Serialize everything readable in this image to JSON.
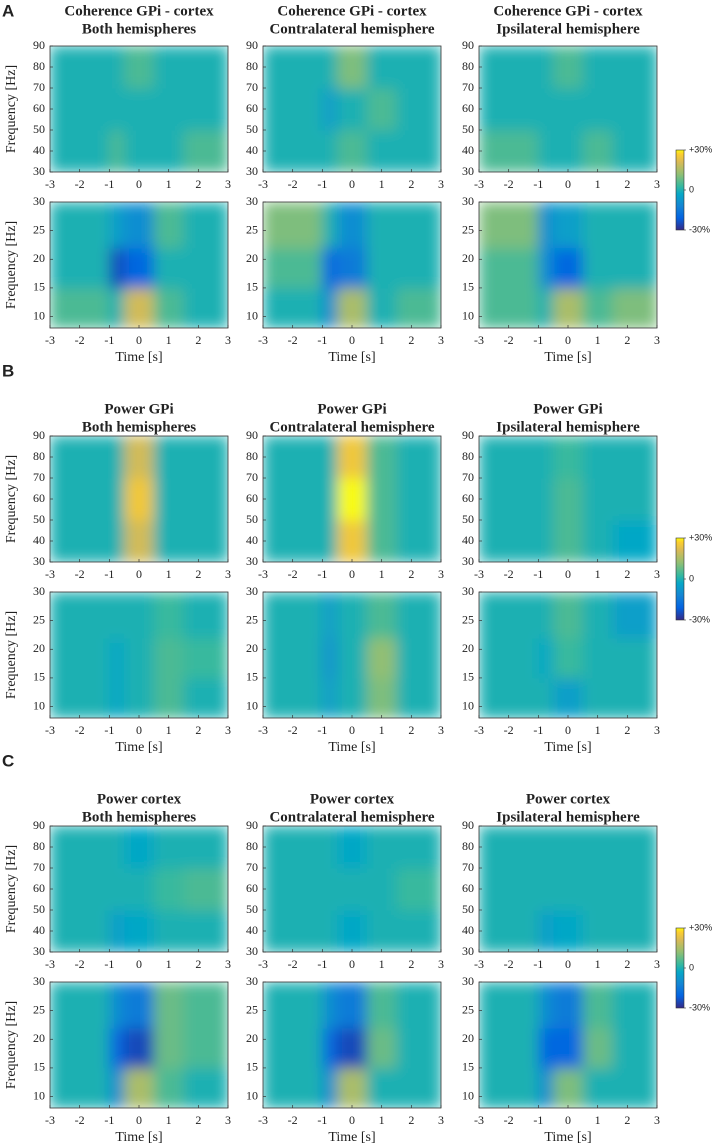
{
  "sections": [
    {
      "letter": "A",
      "titles": [
        [
          "Coherence GPi - cortex",
          "Both hemispheres"
        ],
        [
          "Coherence GPi - cortex",
          "Contralateral hemisphere"
        ],
        [
          "Coherence GPi - cortex",
          "Ipsilateral hemisphere"
        ]
      ],
      "colorbar": {
        "lim": [
          -30,
          30
        ],
        "ticks": [
          {
            "value": 30,
            "label": "+30%"
          },
          0,
          {
            "value": -30,
            "label": "-30%"
          }
        ]
      }
    },
    {
      "letter": "B",
      "titles": [
        [
          "Power GPi",
          "Both hemispheres"
        ],
        [
          "Power GPi",
          "Contralateral hemisphere"
        ],
        [
          "Power GPi",
          "Ipsilateral hemisphere"
        ]
      ],
      "colorbar": {
        "lim": [
          -30,
          30
        ],
        "ticks": [
          {
            "value": 30,
            "label": "+30%"
          },
          0,
          {
            "value": -30,
            "label": "-30%"
          }
        ]
      }
    },
    {
      "letter": "C",
      "titles": [
        [
          "Power cortex",
          "Both hemispheres"
        ],
        [
          "Power cortex",
          "Contralateral hemisphere"
        ],
        [
          "Power cortex",
          "Ipsilateral hemisphere"
        ]
      ],
      "colorbar": {
        "lim": [
          -30,
          30
        ],
        "ticks": [
          {
            "value": 30,
            "label": "+30%"
          },
          0,
          {
            "value": -30,
            "label": "-30%"
          }
        ]
      }
    }
  ],
  "chart_data": [
    {
      "type": "heatmap",
      "ylabel": "Frequency [Hz]",
      "x_bins": [
        -3,
        -1,
        -0.5,
        0.5,
        1.5,
        3
      ],
      "y_bins": [
        30,
        50,
        70,
        90
      ],
      "z": [
        [
          0,
          5,
          0,
          0,
          5
        ],
        [
          0,
          0,
          0,
          0,
          0
        ],
        [
          0,
          0,
          5,
          0,
          0
        ]
      ],
      "xlim": [
        -3,
        3
      ],
      "xticks": [
        -3,
        -2,
        -1,
        0,
        1,
        2,
        3
      ],
      "ylim": [
        30,
        90
      ],
      "yticks": [
        30,
        40,
        50,
        60,
        70,
        80,
        90
      ]
    },
    {
      "type": "heatmap",
      "x_bins": [
        -3,
        -1,
        -0.5,
        0.5,
        1.5,
        3
      ],
      "y_bins": [
        30,
        50,
        70,
        90
      ],
      "z": [
        [
          0,
          0,
          5,
          0,
          0
        ],
        [
          0,
          -5,
          0,
          5,
          0
        ],
        [
          0,
          0,
          10,
          0,
          0
        ]
      ],
      "xlim": [
        -3,
        3
      ],
      "xticks": [
        -3,
        -2,
        -1,
        0,
        1,
        2,
        3
      ],
      "ylim": [
        30,
        90
      ],
      "yticks": [
        30,
        40,
        50,
        60,
        70,
        80,
        90
      ]
    },
    {
      "type": "heatmap",
      "x_bins": [
        -3,
        -1,
        -0.5,
        0.5,
        1.5,
        3
      ],
      "y_bins": [
        30,
        50,
        70,
        90
      ],
      "z": [
        [
          5,
          0,
          0,
          5,
          0
        ],
        [
          0,
          0,
          0,
          0,
          0
        ],
        [
          0,
          0,
          5,
          0,
          0
        ]
      ],
      "xlim": [
        -3,
        3
      ],
      "xticks": [
        -3,
        -2,
        -1,
        0,
        1,
        2,
        3
      ],
      "ylim": [
        30,
        90
      ],
      "yticks": [
        30,
        40,
        50,
        60,
        70,
        80,
        90
      ]
    },
    {
      "type": "heatmap",
      "ylabel": "Frequency [Hz]",
      "xlabel": "Time [s]",
      "x_bins": [
        -3,
        -1,
        -0.5,
        0.5,
        1.5,
        3
      ],
      "y_bins": [
        8,
        15,
        22,
        30
      ],
      "z": [
        [
          5,
          0,
          20,
          5,
          0
        ],
        [
          0,
          -25,
          -20,
          0,
          0
        ],
        [
          0,
          -5,
          -10,
          5,
          0
        ]
      ],
      "xlim": [
        -3,
        3
      ],
      "xticks": [
        -3,
        -2,
        -1,
        0,
        1,
        2,
        3
      ],
      "ylim": [
        8,
        30
      ],
      "yticks": [
        10,
        15,
        20,
        25,
        30
      ]
    },
    {
      "type": "heatmap",
      "xlabel": "Time [s]",
      "x_bins": [
        -3,
        -1,
        -0.5,
        0.5,
        1.5,
        3
      ],
      "y_bins": [
        8,
        15,
        22,
        30
      ],
      "z": [
        [
          0,
          -10,
          15,
          0,
          5
        ],
        [
          5,
          -20,
          -15,
          0,
          0
        ],
        [
          10,
          0,
          -10,
          0,
          0
        ]
      ],
      "xlim": [
        -3,
        3
      ],
      "xticks": [
        -3,
        -2,
        -1,
        0,
        1,
        2,
        3
      ],
      "ylim": [
        8,
        30
      ],
      "yticks": [
        10,
        15,
        20,
        25,
        30
      ]
    },
    {
      "type": "heatmap",
      "xlabel": "Time [s]",
      "x_bins": [
        -3,
        -1,
        -0.5,
        0.5,
        1.5,
        3
      ],
      "y_bins": [
        8,
        15,
        22,
        30
      ],
      "z": [
        [
          5,
          0,
          15,
          5,
          10
        ],
        [
          5,
          -10,
          -20,
          0,
          0
        ],
        [
          10,
          -10,
          -5,
          0,
          0
        ]
      ],
      "xlim": [
        -3,
        3
      ],
      "xticks": [
        -3,
        -2,
        -1,
        0,
        1,
        2,
        3
      ],
      "ylim": [
        8,
        30
      ],
      "yticks": [
        10,
        15,
        20,
        25,
        30
      ]
    },
    {
      "type": "heatmap",
      "ylabel": "Frequency [Hz]",
      "x_bins": [
        -3,
        -1,
        -0.5,
        0.5,
        1.5,
        3
      ],
      "y_bins": [
        30,
        50,
        70,
        90
      ],
      "z": [
        [
          0,
          0,
          20,
          0,
          0
        ],
        [
          0,
          0,
          25,
          0,
          0
        ],
        [
          0,
          0,
          20,
          0,
          0
        ]
      ],
      "xlim": [
        -3,
        3
      ],
      "xticks": [
        -3,
        -2,
        -1,
        0,
        1,
        2,
        3
      ],
      "ylim": [
        30,
        90
      ],
      "yticks": [
        30,
        40,
        50,
        60,
        70,
        80,
        90
      ]
    },
    {
      "type": "heatmap",
      "x_bins": [
        -3,
        -1,
        -0.5,
        0.5,
        1.5,
        3
      ],
      "y_bins": [
        30,
        50,
        70,
        90
      ],
      "z": [
        [
          0,
          0,
          25,
          5,
          0
        ],
        [
          0,
          0,
          30,
          5,
          0
        ],
        [
          0,
          0,
          25,
          5,
          0
        ]
      ],
      "xlim": [
        -3,
        3
      ],
      "xticks": [
        -3,
        -2,
        -1,
        0,
        1,
        2,
        3
      ],
      "ylim": [
        30,
        90
      ],
      "yticks": [
        30,
        40,
        50,
        60,
        70,
        80,
        90
      ]
    },
    {
      "type": "heatmap",
      "x_bins": [
        -3,
        -1,
        -0.5,
        0.5,
        1.5,
        3
      ],
      "y_bins": [
        30,
        50,
        70,
        90
      ],
      "z": [
        [
          0,
          0,
          5,
          0,
          -3
        ],
        [
          0,
          0,
          5,
          0,
          0
        ],
        [
          0,
          0,
          3,
          0,
          0
        ]
      ],
      "xlim": [
        -3,
        3
      ],
      "xticks": [
        -3,
        -2,
        -1,
        0,
        1,
        2,
        3
      ],
      "ylim": [
        30,
        90
      ],
      "yticks": [
        30,
        40,
        50,
        60,
        70,
        80,
        90
      ]
    },
    {
      "type": "heatmap",
      "ylabel": "Frequency [Hz]",
      "xlabel": "Time [s]",
      "x_bins": [
        -3,
        -1,
        -0.5,
        0.5,
        1.5,
        3
      ],
      "y_bins": [
        8,
        15,
        22,
        30
      ],
      "z": [
        [
          0,
          -3,
          0,
          5,
          0
        ],
        [
          0,
          -3,
          0,
          5,
          3
        ],
        [
          0,
          0,
          0,
          3,
          0
        ]
      ],
      "xlim": [
        -3,
        3
      ],
      "xticks": [
        -3,
        -2,
        -1,
        0,
        1,
        2,
        3
      ],
      "ylim": [
        8,
        30
      ],
      "yticks": [
        10,
        15,
        20,
        25,
        30
      ]
    },
    {
      "type": "heatmap",
      "xlabel": "Time [s]",
      "x_bins": [
        -3,
        -1,
        -0.5,
        0.5,
        1.5,
        3
      ],
      "y_bins": [
        8,
        15,
        22,
        30
      ],
      "z": [
        [
          0,
          -5,
          0,
          10,
          0
        ],
        [
          0,
          -8,
          0,
          12,
          0
        ],
        [
          0,
          -5,
          0,
          5,
          0
        ]
      ],
      "xlim": [
        -3,
        3
      ],
      "xticks": [
        -3,
        -2,
        -1,
        0,
        1,
        2,
        3
      ],
      "ylim": [
        8,
        30
      ],
      "yticks": [
        10,
        15,
        20,
        25,
        30
      ]
    },
    {
      "type": "heatmap",
      "xlabel": "Time [s]",
      "x_bins": [
        -3,
        -1,
        -0.5,
        0.5,
        1.5,
        3
      ],
      "y_bins": [
        8,
        15,
        22,
        30
      ],
      "z": [
        [
          0,
          0,
          -5,
          0,
          0
        ],
        [
          0,
          -3,
          3,
          0,
          0
        ],
        [
          0,
          0,
          5,
          0,
          -5
        ]
      ],
      "xlim": [
        -3,
        3
      ],
      "xticks": [
        -3,
        -2,
        -1,
        0,
        1,
        2,
        3
      ],
      "ylim": [
        8,
        30
      ],
      "yticks": [
        10,
        15,
        20,
        25,
        30
      ]
    },
    {
      "type": "heatmap",
      "ylabel": "Frequency [Hz]",
      "x_bins": [
        -3,
        -1,
        -0.5,
        0.5,
        1.5,
        3
      ],
      "y_bins": [
        30,
        50,
        70,
        90
      ],
      "z": [
        [
          0,
          -5,
          -3,
          0,
          0
        ],
        [
          0,
          0,
          0,
          3,
          5
        ],
        [
          0,
          0,
          -3,
          0,
          0
        ]
      ],
      "xlim": [
        -3,
        3
      ],
      "xticks": [
        -3,
        -2,
        -1,
        0,
        1,
        2,
        3
      ],
      "ylim": [
        30,
        90
      ],
      "yticks": [
        30,
        40,
        50,
        60,
        70,
        80,
        90
      ]
    },
    {
      "type": "heatmap",
      "x_bins": [
        -3,
        -1,
        -0.5,
        0.5,
        1.5,
        3
      ],
      "y_bins": [
        30,
        50,
        70,
        90
      ],
      "z": [
        [
          0,
          0,
          -3,
          0,
          0
        ],
        [
          0,
          0,
          0,
          0,
          3
        ],
        [
          0,
          0,
          -3,
          0,
          0
        ]
      ],
      "xlim": [
        -3,
        3
      ],
      "xticks": [
        -3,
        -2,
        -1,
        0,
        1,
        2,
        3
      ],
      "ylim": [
        30,
        90
      ],
      "yticks": [
        30,
        40,
        50,
        60,
        70,
        80,
        90
      ]
    },
    {
      "type": "heatmap",
      "x_bins": [
        -3,
        -1,
        -0.5,
        0.5,
        1.5,
        3
      ],
      "y_bins": [
        30,
        50,
        70,
        90
      ],
      "z": [
        [
          0,
          -5,
          -3,
          0,
          0
        ],
        [
          0,
          0,
          0,
          0,
          0
        ],
        [
          0,
          0,
          0,
          0,
          0
        ]
      ],
      "xlim": [
        -3,
        3
      ],
      "xticks": [
        -3,
        -2,
        -1,
        0,
        1,
        2,
        3
      ],
      "ylim": [
        30,
        90
      ],
      "yticks": [
        30,
        40,
        50,
        60,
        70,
        80,
        90
      ]
    },
    {
      "type": "heatmap",
      "ylabel": "Frequency [Hz]",
      "xlabel": "Time [s]",
      "x_bins": [
        -3,
        -1,
        -0.5,
        0.5,
        1.5,
        3
      ],
      "y_bins": [
        8,
        15,
        22,
        30
      ],
      "z": [
        [
          0,
          -10,
          15,
          5,
          0
        ],
        [
          0,
          -20,
          -25,
          8,
          5
        ],
        [
          0,
          -10,
          -15,
          8,
          5
        ]
      ],
      "xlim": [
        -3,
        3
      ],
      "xticks": [
        -3,
        -2,
        -1,
        0,
        1,
        2,
        3
      ],
      "ylim": [
        8,
        30
      ],
      "yticks": [
        10,
        15,
        20,
        25,
        30
      ]
    },
    {
      "type": "heatmap",
      "xlabel": "Time [s]",
      "x_bins": [
        -3,
        -1,
        -0.5,
        0.5,
        1.5,
        3
      ],
      "y_bins": [
        8,
        15,
        22,
        30
      ],
      "z": [
        [
          0,
          -10,
          15,
          0,
          0
        ],
        [
          0,
          -20,
          -25,
          8,
          0
        ],
        [
          0,
          -10,
          -15,
          5,
          0
        ]
      ],
      "xlim": [
        -3,
        3
      ],
      "xticks": [
        -3,
        -2,
        -1,
        0,
        1,
        2,
        3
      ],
      "ylim": [
        8,
        30
      ],
      "yticks": [
        10,
        15,
        20,
        25,
        30
      ]
    },
    {
      "type": "heatmap",
      "xlabel": "Time [s]",
      "x_bins": [
        -3,
        -1,
        -0.5,
        0.5,
        1.5,
        3
      ],
      "y_bins": [
        8,
        15,
        22,
        30
      ],
      "z": [
        [
          0,
          -10,
          10,
          0,
          0
        ],
        [
          0,
          -20,
          -20,
          8,
          0
        ],
        [
          0,
          -10,
          -15,
          5,
          0
        ]
      ],
      "xlim": [
        -3,
        3
      ],
      "xticks": [
        -3,
        -2,
        -1,
        0,
        1,
        2,
        3
      ],
      "ylim": [
        8,
        30
      ],
      "yticks": [
        10,
        15,
        20,
        25,
        30
      ]
    }
  ]
}
